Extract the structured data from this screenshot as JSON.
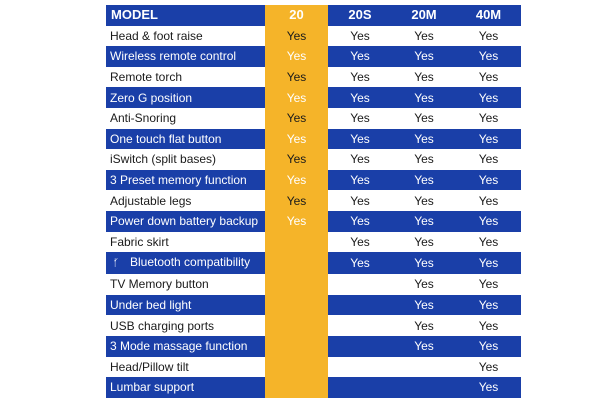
{
  "table": {
    "header": [
      "MODEL",
      "20",
      "20S",
      "20M",
      "40M"
    ],
    "rows": [
      {
        "feature": "Head & foot raise",
        "values": [
          "Yes",
          "Yes",
          "Yes",
          "Yes"
        ]
      },
      {
        "feature": "Wireless remote control",
        "values": [
          "Yes",
          "Yes",
          "Yes",
          "Yes"
        ]
      },
      {
        "feature": "Remote torch",
        "values": [
          "Yes",
          "Yes",
          "Yes",
          "Yes"
        ]
      },
      {
        "feature": "Zero G position",
        "values": [
          "Yes",
          "Yes",
          "Yes",
          "Yes"
        ]
      },
      {
        "feature": "Anti-Snoring",
        "values": [
          "Yes",
          "Yes",
          "Yes",
          "Yes"
        ]
      },
      {
        "feature": "One touch flat button",
        "values": [
          "Yes",
          "Yes",
          "Yes",
          "Yes"
        ]
      },
      {
        "feature": "iSwitch (split bases)",
        "values": [
          "Yes",
          "Yes",
          "Yes",
          "Yes"
        ]
      },
      {
        "feature": "3 Preset memory function",
        "values": [
          "Yes",
          "Yes",
          "Yes",
          "Yes"
        ]
      },
      {
        "feature": "Adjustable legs",
        "values": [
          "Yes",
          "Yes",
          "Yes",
          "Yes"
        ]
      },
      {
        "feature": "Power down battery backup",
        "values": [
          "Yes",
          "Yes",
          "Yes",
          "Yes"
        ]
      },
      {
        "feature": "Fabric skirt",
        "values": [
          "",
          "Yes",
          "Yes",
          "Yes"
        ]
      },
      {
        "feature": "Bluetooth compatibility",
        "icon": "bluetooth-icon",
        "values": [
          "",
          "Yes",
          "Yes",
          "Yes"
        ]
      },
      {
        "feature": "TV Memory button",
        "values": [
          "",
          "",
          "Yes",
          "Yes"
        ]
      },
      {
        "feature": "Under bed light",
        "values": [
          "",
          "",
          "Yes",
          "Yes"
        ]
      },
      {
        "feature": "USB charging ports",
        "values": [
          "",
          "",
          "Yes",
          "Yes"
        ]
      },
      {
        "feature": "3 Mode massage function",
        "values": [
          "",
          "",
          "Yes",
          "Yes"
        ]
      },
      {
        "feature": "Head/Pillow tilt",
        "values": [
          "",
          "",
          "",
          "Yes"
        ]
      },
      {
        "feature": "Lumbar support",
        "values": [
          "",
          "",
          "",
          "Yes"
        ]
      }
    ]
  },
  "colors": {
    "header_blue": "#1a3fa8",
    "highlight_orange": "#f5b429",
    "white": "#ffffff"
  }
}
